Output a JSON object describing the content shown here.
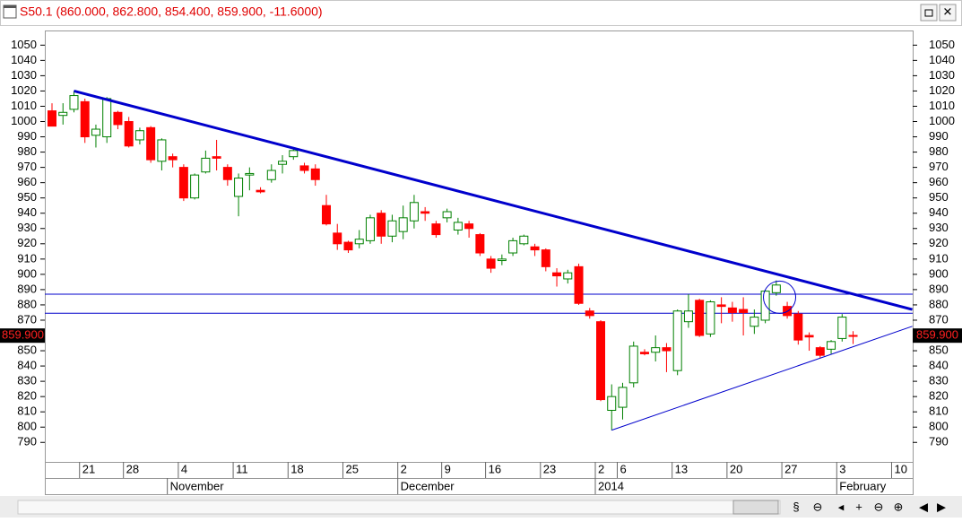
{
  "chart_data": {
    "type": "candlestick",
    "title": "S50.1 (860.000, 862.800, 854.400, 859.900, -11.6000)",
    "categories": [
      null,
      null,
      null,
      "21",
      null,
      null,
      null,
      "28",
      null,
      null,
      null,
      null,
      "4",
      null,
      null,
      null,
      null,
      "11",
      null,
      null,
      null,
      null,
      "18",
      null,
      null,
      null,
      null,
      "25",
      null,
      null,
      null,
      null,
      "2",
      null,
      null,
      null,
      "9",
      null,
      null,
      null,
      "16",
      null,
      null,
      null,
      null,
      "23",
      null,
      null,
      null,
      null,
      "2",
      null,
      "6",
      null,
      null,
      null,
      null,
      "13",
      null,
      null,
      null,
      null,
      "20",
      null,
      null,
      null,
      null,
      "27",
      null,
      null,
      null,
      null,
      "3",
      null,
      null,
      null,
      null,
      "10",
      null
    ],
    "months": [
      null,
      null,
      null,
      null,
      null,
      null,
      null,
      null,
      null,
      null,
      null,
      "November",
      null,
      null,
      null,
      null,
      null,
      null,
      null,
      null,
      null,
      null,
      null,
      null,
      null,
      null,
      null,
      null,
      null,
      null,
      null,
      null,
      "December",
      null,
      null,
      null,
      null,
      null,
      null,
      null,
      null,
      null,
      null,
      null,
      null,
      null,
      null,
      null,
      null,
      null,
      "2014",
      null,
      null,
      null,
      null,
      null,
      null,
      null,
      null,
      null,
      null,
      null,
      null,
      null,
      null,
      null,
      null,
      null,
      null,
      null,
      null,
      null,
      "February",
      null,
      null,
      null,
      null,
      null,
      null
    ],
    "open": [
      1007,
      1004,
      1008,
      1013,
      991,
      990,
      1006,
      1000,
      988,
      996,
      974,
      977,
      970,
      950,
      967,
      977,
      970,
      951,
      965,
      955,
      962,
      972,
      977,
      971,
      969,
      945,
      927,
      921,
      920,
      922,
      940,
      925,
      928,
      935,
      941,
      933,
      937,
      929,
      933,
      926,
      910,
      909,
      914,
      920,
      918,
      916,
      901,
      897,
      905,
      876,
      869,
      811,
      813,
      829,
      849,
      849,
      852,
      837,
      869,
      883,
      861,
      880,
      878,
      877,
      866,
      870,
      888,
      879,
      874,
      860,
      852,
      851,
      858,
      860,
      null,
      null,
      null,
      null,
      null
    ],
    "high": [
      1012,
      1012,
      1020,
      1015,
      998,
      1016,
      1007,
      1003,
      996,
      997,
      989,
      979,
      972,
      966,
      981,
      988,
      972,
      966,
      970,
      957,
      972,
      978,
      982,
      973,
      972,
      952,
      933,
      922,
      929,
      939,
      942,
      939,
      945,
      952,
      944,
      935,
      943,
      937,
      935,
      927,
      912,
      913,
      924,
      926,
      920,
      917,
      904,
      903,
      907,
      878,
      870,
      828,
      829,
      856,
      851,
      860,
      855,
      877,
      887,
      884,
      883,
      885,
      882,
      885,
      877,
      890,
      896,
      882,
      876,
      862,
      853,
      857,
      874,
      862.8,
      null,
      null,
      null,
      null,
      null
    ],
    "low": [
      997,
      998,
      1006,
      986,
      983,
      986,
      995,
      983,
      985,
      973,
      968,
      970,
      948,
      949,
      966,
      968,
      958,
      938,
      955,
      953,
      960,
      966,
      975,
      966,
      958,
      932,
      916,
      914,
      917,
      920,
      920,
      921,
      923,
      930,
      935,
      924,
      934,
      926,
      924,
      912,
      901,
      906,
      912,
      919,
      912,
      902,
      892,
      894,
      880,
      871,
      817,
      798,
      805,
      826,
      847,
      843,
      836,
      834,
      865,
      859,
      859,
      868,
      869,
      860,
      861,
      868,
      886,
      871,
      854,
      850,
      845,
      848,
      856,
      854.4,
      null,
      null,
      null,
      null,
      null
    ],
    "close": [
      997,
      1006,
      1017,
      990,
      995,
      1015,
      998,
      984,
      994,
      975,
      988,
      975,
      950,
      965,
      976,
      976,
      962,
      963,
      966,
      954,
      968,
      974,
      981,
      968,
      962,
      933,
      920,
      916,
      923,
      937,
      925,
      935,
      937,
      947,
      940,
      926,
      941,
      934,
      930,
      914,
      904,
      910,
      922,
      925,
      916,
      905,
      899,
      901,
      881,
      873,
      818,
      820,
      826,
      853,
      848,
      852,
      850,
      876,
      876,
      860,
      882,
      879,
      875,
      875,
      872,
      889,
      893,
      873,
      857,
      859,
      847,
      856,
      872,
      859.9,
      null,
      null,
      null,
      null,
      null
    ],
    "up_color": "#008000",
    "down_color": "#ff0000",
    "ylim": [
      779,
      1059
    ],
    "yticks": [
      790,
      800,
      810,
      820,
      830,
      840,
      850,
      860,
      870,
      880,
      890,
      900,
      910,
      920,
      930,
      940,
      950,
      960,
      970,
      980,
      990,
      1000,
      1010,
      1020,
      1030,
      1040,
      1050
    ],
    "last_price": {
      "value": 859.9,
      "label": "859.900"
    },
    "horizontal_lines": [
      {
        "value": 887,
        "color": "#0000cc"
      },
      {
        "value": 874.5,
        "color": "#0000cc"
      }
    ],
    "trend_lines": [
      {
        "color": "#0000cc",
        "width": 3,
        "points": [
          [
            2,
            1020
          ],
          [
            78.4,
            877
          ]
        ]
      },
      {
        "color": "#0000cc",
        "width": 1,
        "points": [
          [
            51,
            798
          ],
          [
            78.4,
            866
          ]
        ]
      }
    ],
    "circle": {
      "x": 66.3,
      "y": 885,
      "color": "#0000cc"
    }
  }
}
